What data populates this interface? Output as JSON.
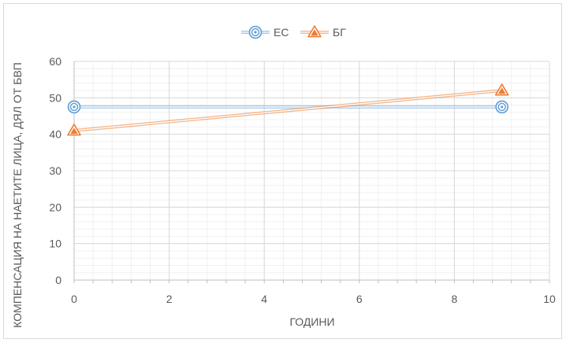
{
  "chart_data": {
    "type": "line",
    "title": "",
    "xlabel": "ГОДИНИ",
    "ylabel": "КОМПЕНСАЦИЯ НА НАЕТИТЕ ЛИЦА, ДЯЛ ОТ БВП",
    "xlim": [
      0,
      10
    ],
    "ylim": [
      0,
      60
    ],
    "x_ticks": [
      "0",
      "2",
      "4",
      "6",
      "8",
      "10"
    ],
    "y_ticks": [
      "0",
      "10",
      "20",
      "30",
      "40",
      "50",
      "60"
    ],
    "grid": true,
    "legend_position": "top",
    "series": [
      {
        "name": "ЕС",
        "color": "#5b9bd5",
        "marker": "circle",
        "x": [
          0,
          9
        ],
        "y": [
          47.5,
          47.5
        ]
      },
      {
        "name": "БГ",
        "color": "#ed7d31",
        "marker": "triangle",
        "x": [
          0,
          9
        ],
        "y": [
          41,
          52
        ]
      }
    ]
  }
}
